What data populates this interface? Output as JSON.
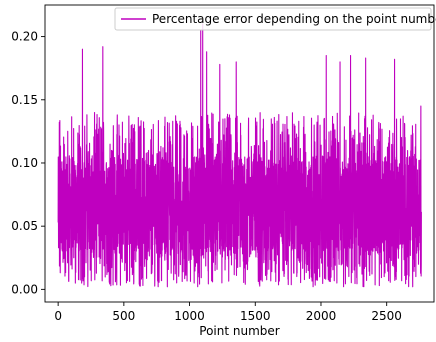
{
  "chart_data": {
    "type": "line",
    "title": "",
    "xlabel": "Point number",
    "ylabel": "",
    "xlim": [
      -100,
      2860
    ],
    "ylim": [
      -0.01,
      0.225
    ],
    "x_ticks": [
      0,
      500,
      1000,
      1500,
      2000,
      2500
    ],
    "x_tick_labels": [
      "0",
      "500",
      "1000",
      "1500",
      "2000",
      "2500"
    ],
    "y_ticks": [
      0.0,
      0.05,
      0.1,
      0.15,
      0.2
    ],
    "y_tick_labels": [
      "0.00",
      "0.05",
      "0.10",
      "0.15",
      "0.20"
    ],
    "grid": false,
    "legend_position": "top-right",
    "series": [
      {
        "name": "Percentage error depending on the point number",
        "color": "#bf00bf",
        "n_points": 2765,
        "x_range": [
          0,
          2765
        ],
        "y_range": [
          0.0,
          0.21
        ],
        "approx_mean": 0.068,
        "typical_max": 0.14,
        "notable_peaks": [
          {
            "x": 185,
            "y": 0.19
          },
          {
            "x": 340,
            "y": 0.192
          },
          {
            "x": 1085,
            "y": 0.205
          },
          {
            "x": 1100,
            "y": 0.21
          },
          {
            "x": 1130,
            "y": 0.188
          },
          {
            "x": 1230,
            "y": 0.178
          },
          {
            "x": 1355,
            "y": 0.18
          },
          {
            "x": 2040,
            "y": 0.185
          },
          {
            "x": 2145,
            "y": 0.18
          },
          {
            "x": 2225,
            "y": 0.185
          },
          {
            "x": 2340,
            "y": 0.183
          },
          {
            "x": 2560,
            "y": 0.182
          },
          {
            "x": 2760,
            "y": 0.145
          }
        ]
      }
    ]
  }
}
